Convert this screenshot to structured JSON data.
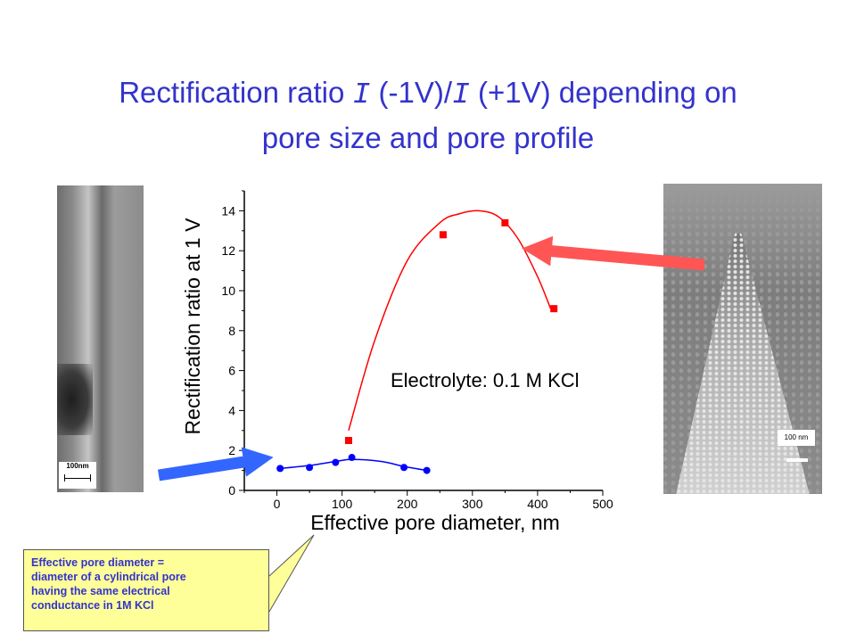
{
  "slide": {
    "title_line1_a": "Rectification ratio ",
    "title_i1": "I",
    "title_line1_b": " (-1V)/",
    "title_i2": "I",
    "title_line1_c": " (+1V) depending on",
    "title_line2": "pore size and pore profile",
    "title_color": "#3333cc"
  },
  "left_image": {
    "scale_label": "100nm"
  },
  "right_image": {
    "scale_label": "100 nm"
  },
  "callout": {
    "lines": [
      "Effective pore diameter =",
      "diameter of a cylindrical pore",
      "having the same electrical",
      "conductance in 1M KCl"
    ],
    "background": "#ffff99",
    "text_color": "#3333cc"
  },
  "chart_data": {
    "type": "scatter",
    "xlabel": "Effective pore diameter, nm",
    "ylabel": "Rectification ratio at 1 V",
    "annotation": "Electrolyte: 0.1 M KCl",
    "xlim": [
      -50,
      500
    ],
    "ylim": [
      0,
      15
    ],
    "x_ticks": [
      0,
      100,
      200,
      300,
      400,
      500
    ],
    "y_ticks": [
      0,
      2,
      4,
      6,
      8,
      10,
      12,
      14
    ],
    "series": [
      {
        "marker": "square",
        "color": "#ff0000",
        "x": [
          110,
          255,
          350,
          425
        ],
        "y": [
          2.5,
          12.8,
          13.4,
          9.1
        ],
        "fit_x": [
          110,
          150,
          200,
          250,
          280,
          310,
          340,
          370,
          400,
          420
        ],
        "fit_y": [
          3.0,
          7.5,
          11.5,
          13.4,
          13.85,
          14.0,
          13.7,
          12.6,
          10.7,
          9.1
        ]
      },
      {
        "marker": "circle",
        "color": "#0000ff",
        "x": [
          5,
          50,
          90,
          115,
          195,
          230
        ],
        "y": [
          1.1,
          1.15,
          1.4,
          1.65,
          1.15,
          1.0
        ],
        "fit_x": [
          5,
          50,
          90,
          115,
          160,
          195,
          230
        ],
        "fit_y": [
          1.1,
          1.25,
          1.45,
          1.55,
          1.45,
          1.2,
          1.0
        ]
      }
    ],
    "arrows": [
      {
        "color": "#ff5555",
        "points_to_series": 0
      },
      {
        "color": "#3366ff",
        "points_to_series": 1
      }
    ]
  }
}
